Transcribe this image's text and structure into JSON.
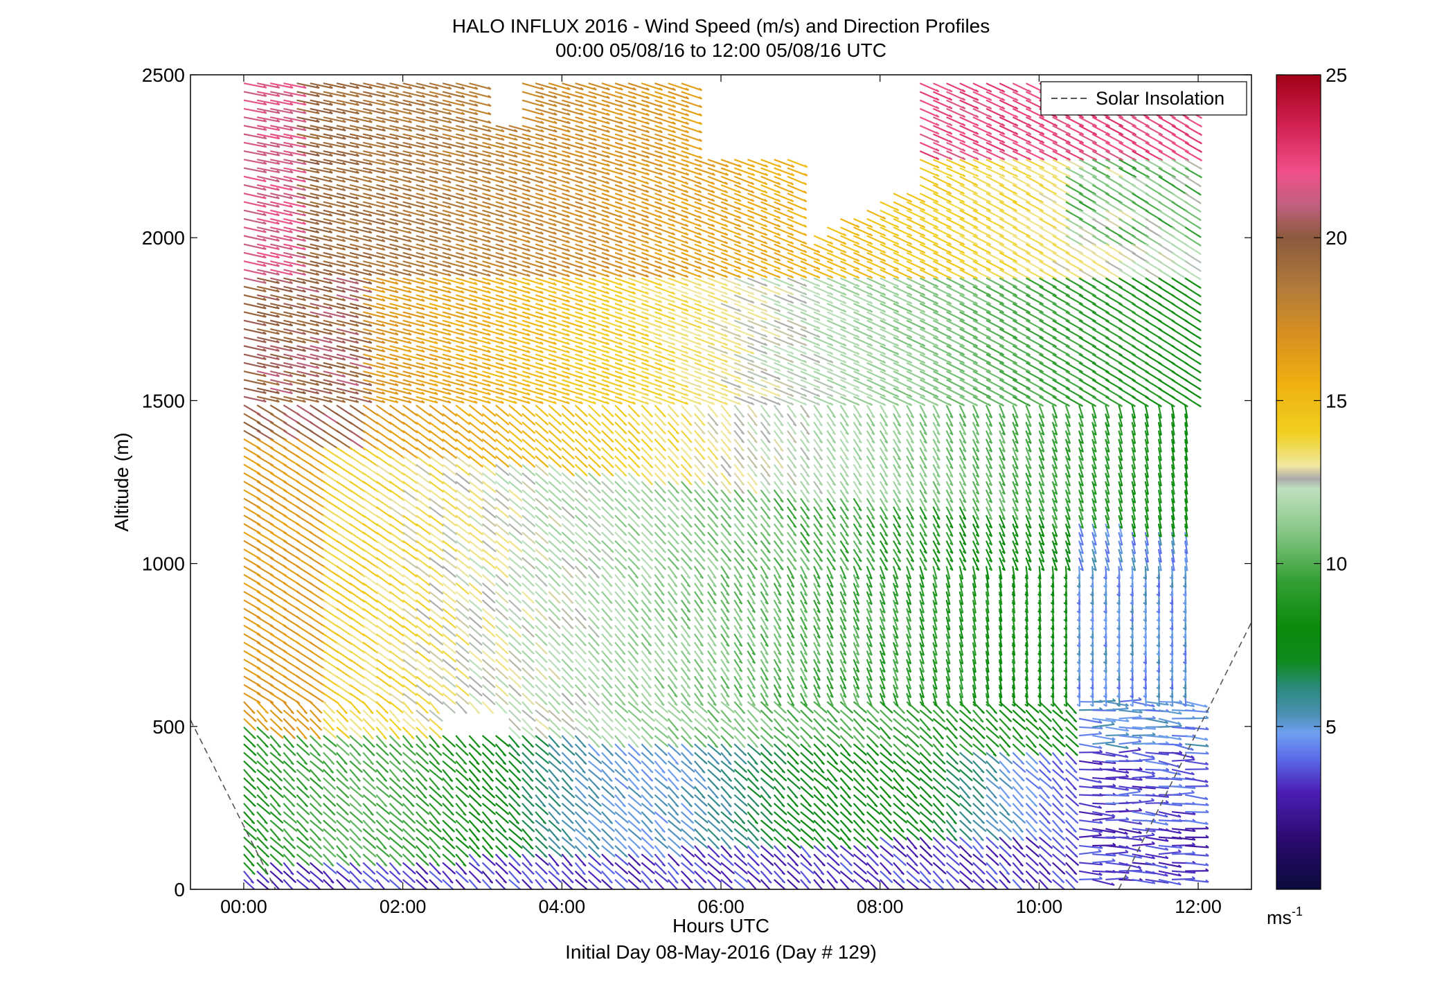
{
  "chart_data": {
    "type": "wind-barb-profile",
    "title_line1": "HALO INFLUX 2016 - Wind Speed (m/s) and Direction Profiles",
    "title_line2": "00:00 05/08/16 to 12:00 05/08/16  UTC",
    "xlabel": "Hours UTC",
    "xsublabel": "Initial Day 08-May-2016 (Day # 129)",
    "ylabel": "Altitude (m)",
    "xlim_hours": [
      -0.67,
      12.67
    ],
    "ylim": [
      0,
      2500
    ],
    "x_ticks": [
      {
        "v": 0,
        "label": "00:00"
      },
      {
        "v": 2,
        "label": "02:00"
      },
      {
        "v": 4,
        "label": "04:00"
      },
      {
        "v": 6,
        "label": "06:00"
      },
      {
        "v": 8,
        "label": "08:00"
      },
      {
        "v": 10,
        "label": "10:00"
      },
      {
        "v": 12,
        "label": "12:00"
      }
    ],
    "y_ticks": [
      {
        "v": 0,
        "label": "0"
      },
      {
        "v": 500,
        "label": "500"
      },
      {
        "v": 1000,
        "label": "1000"
      },
      {
        "v": 1500,
        "label": "1500"
      },
      {
        "v": 2000,
        "label": "2000"
      },
      {
        "v": 2500,
        "label": "2500"
      }
    ],
    "legend": {
      "label": "Solar Insolation",
      "style": "dashed",
      "color": "#555555",
      "position": "top-right"
    },
    "solar_insolation": [
      {
        "x": -0.67,
        "y": 520
      },
      {
        "x": 0.4,
        "y": 0
      },
      {
        "x": 11.0,
        "y": 0
      },
      {
        "x": 12.67,
        "y": 820
      }
    ],
    "colorbar": {
      "range": [
        0,
        25
      ],
      "ticks": [
        {
          "v": 5,
          "label": "5"
        },
        {
          "v": 10,
          "label": "10"
        },
        {
          "v": 15,
          "label": "15"
        },
        {
          "v": 20,
          "label": "20"
        },
        {
          "v": 25,
          "label": "25"
        }
      ],
      "unit": "ms",
      "unit_exp": "-1",
      "stops": [
        {
          "v": 0,
          "color": "#0b0b3b"
        },
        {
          "v": 1.5,
          "color": "#2a0a6e"
        },
        {
          "v": 3,
          "color": "#4b1fb5"
        },
        {
          "v": 4,
          "color": "#5a6ae8"
        },
        {
          "v": 4.8,
          "color": "#6fa0f0"
        },
        {
          "v": 5.4,
          "color": "#4a8fb0"
        },
        {
          "v": 6.2,
          "color": "#2a8a7a"
        },
        {
          "v": 7,
          "color": "#0f8a1f"
        },
        {
          "v": 8,
          "color": "#0a8a0a"
        },
        {
          "v": 9.5,
          "color": "#35a035"
        },
        {
          "v": 11,
          "color": "#88c888"
        },
        {
          "v": 12.3,
          "color": "#bfe0bf"
        },
        {
          "v": 12.6,
          "color": "#aaaaaa"
        },
        {
          "v": 13,
          "color": "#f0e8a0"
        },
        {
          "v": 14,
          "color": "#f0d020"
        },
        {
          "v": 15.5,
          "color": "#f0b010"
        },
        {
          "v": 17,
          "color": "#d89020"
        },
        {
          "v": 18.5,
          "color": "#b07a3a"
        },
        {
          "v": 20,
          "color": "#8b5a3c"
        },
        {
          "v": 21,
          "color": "#c06080"
        },
        {
          "v": 22,
          "color": "#f0508a"
        },
        {
          "v": 23.5,
          "color": "#d02050"
        },
        {
          "v": 25,
          "color": "#a00018"
        }
      ]
    },
    "barb_grid": {
      "time_start_hours": 0.0,
      "time_step_hours": 0.1667,
      "time_count": 72,
      "altitude_start_m": 30,
      "altitude_step_m": 26,
      "altitude_count": 96
    },
    "wind_field_description": {
      "upper_speed_ms": 20,
      "mid_speed_ms": 15,
      "lower_speed_ms": 9,
      "surface_speed_ms": 3
    }
  }
}
